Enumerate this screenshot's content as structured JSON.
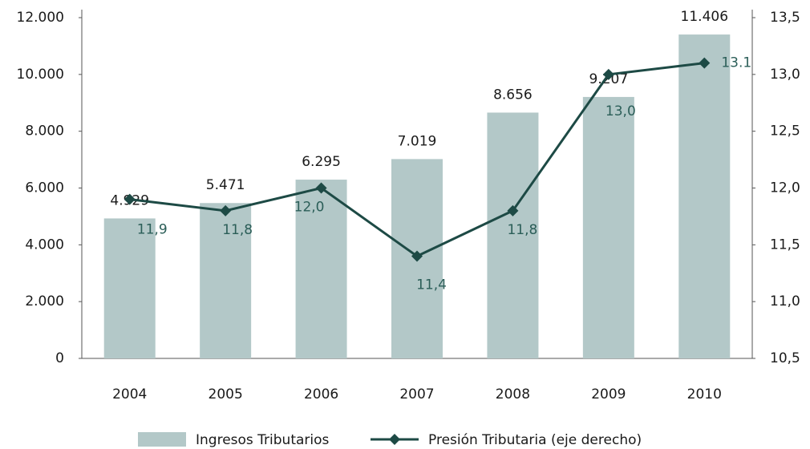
{
  "chart_data": {
    "type": "bar-line",
    "categories": [
      "2004",
      "2005",
      "2006",
      "2007",
      "2008",
      "2009",
      "2010"
    ],
    "series": [
      {
        "name": "Ingresos Tributarios",
        "type": "bar",
        "color": "#b3c8c8",
        "values": [
          4929,
          5471,
          6295,
          7019,
          8656,
          9207,
          11406
        ],
        "value_labels": [
          "4.929",
          "5.471",
          "6.295",
          "7.019",
          "8.656",
          "9.207",
          "11.406"
        ]
      },
      {
        "name": "Presión Tributaria (eje derecho)",
        "type": "line",
        "axis": "y2",
        "color": "#1d4a45",
        "values": [
          11.9,
          11.8,
          12.0,
          11.4,
          11.8,
          13.0,
          13.1
        ],
        "value_labels": [
          "11,9",
          "11,8",
          "12,0",
          "11,4",
          "11,8",
          "13,0",
          "13.1"
        ]
      }
    ],
    "ylim": [
      0,
      12000
    ],
    "yticks": [
      {
        "value": 0,
        "label": "0"
      },
      {
        "value": 2000,
        "label": "2.000"
      },
      {
        "value": 4000,
        "label": "4.000"
      },
      {
        "value": 6000,
        "label": "6.000"
      },
      {
        "value": 8000,
        "label": "8.000"
      },
      {
        "value": 10000,
        "label": "10.000"
      },
      {
        "value": 12000,
        "label": "12.000"
      }
    ],
    "y2lim": [
      10.5,
      13.5
    ],
    "y2ticks": [
      {
        "value": 10.5,
        "label": "10,5"
      },
      {
        "value": 11,
        "label": "11,0"
      },
      {
        "value": 11.5,
        "label": "11,5"
      },
      {
        "value": 12,
        "label": "12,0"
      },
      {
        "value": 12.5,
        "label": "12,5"
      },
      {
        "value": 13,
        "label": "13,0"
      },
      {
        "value": 13.5,
        "label": "13,5"
      }
    ],
    "legend": "bottom"
  }
}
